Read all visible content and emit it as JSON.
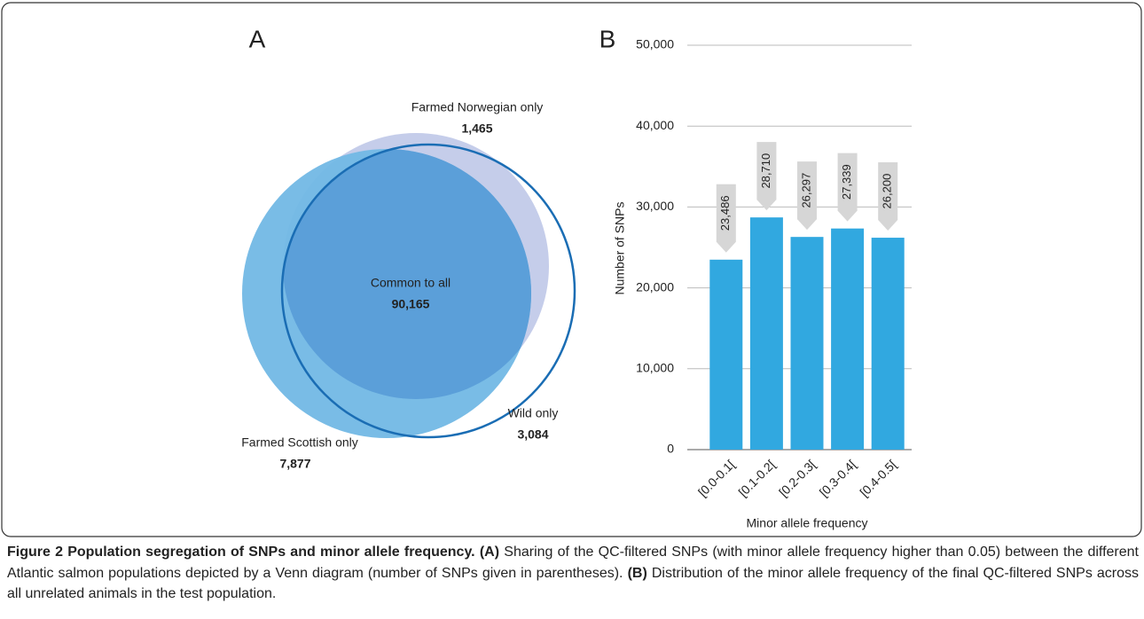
{
  "chart_data": [
    {
      "type": "venn",
      "panel_label": "A",
      "categories": [
        "Farmed Norwegian only",
        "Common to all",
        "Wild only",
        "Farmed Scottish only"
      ],
      "values": [
        1465,
        90165,
        3084,
        7877
      ],
      "value_labels": [
        "1,465",
        "90,165",
        "3,084",
        "7,877"
      ],
      "colors": [
        "#c5cdea",
        "#5b9fd9",
        "#1a6db4",
        "#72b8e5"
      ]
    },
    {
      "type": "bar",
      "panel_label": "B",
      "categories": [
        "[0.0-0.1[",
        "[0.1-0.2[",
        "[0.2-0.3[",
        "[0.3-0.4[",
        "[0.4-0.5["
      ],
      "values": [
        23486,
        28710,
        26297,
        27339,
        26200
      ],
      "value_labels": [
        "23,486",
        "28,710",
        "26,297",
        "27,339",
        "26,200"
      ],
      "color": "#31a8e0",
      "label_color": "#d6d6d6",
      "xlabel": "Minor allele frequency",
      "ylabel": "Number of SNPs",
      "ylim": [
        0,
        50000
      ],
      "yticks": [
        0,
        {
          "value": 10000,
          "label": "10,000"
        },
        {
          "value": 20000,
          "label": "20,000"
        },
        {
          "value": 30000,
          "label": "30,000"
        },
        {
          "value": 40000,
          "label": "40,000"
        },
        {
          "value": 50000,
          "label": "50,000"
        }
      ],
      "grid": true
    }
  ],
  "caption": {
    "title": "Figure 2 Population segregation of SNPs and minor allele frequency.",
    "parts": [
      {
        "label": "(A)",
        "text": "Sharing of the QC-filtered SNPs (with minor allele frequency higher than 0.05) between the different Atlantic salmon populations depicted by a Venn diagram (number of SNPs given in parentheses)."
      },
      {
        "label": "(B)",
        "text": "Distribution of the minor allele frequency of the final QC-filtered SNPs across all unrelated animals in the test population."
      }
    ]
  }
}
